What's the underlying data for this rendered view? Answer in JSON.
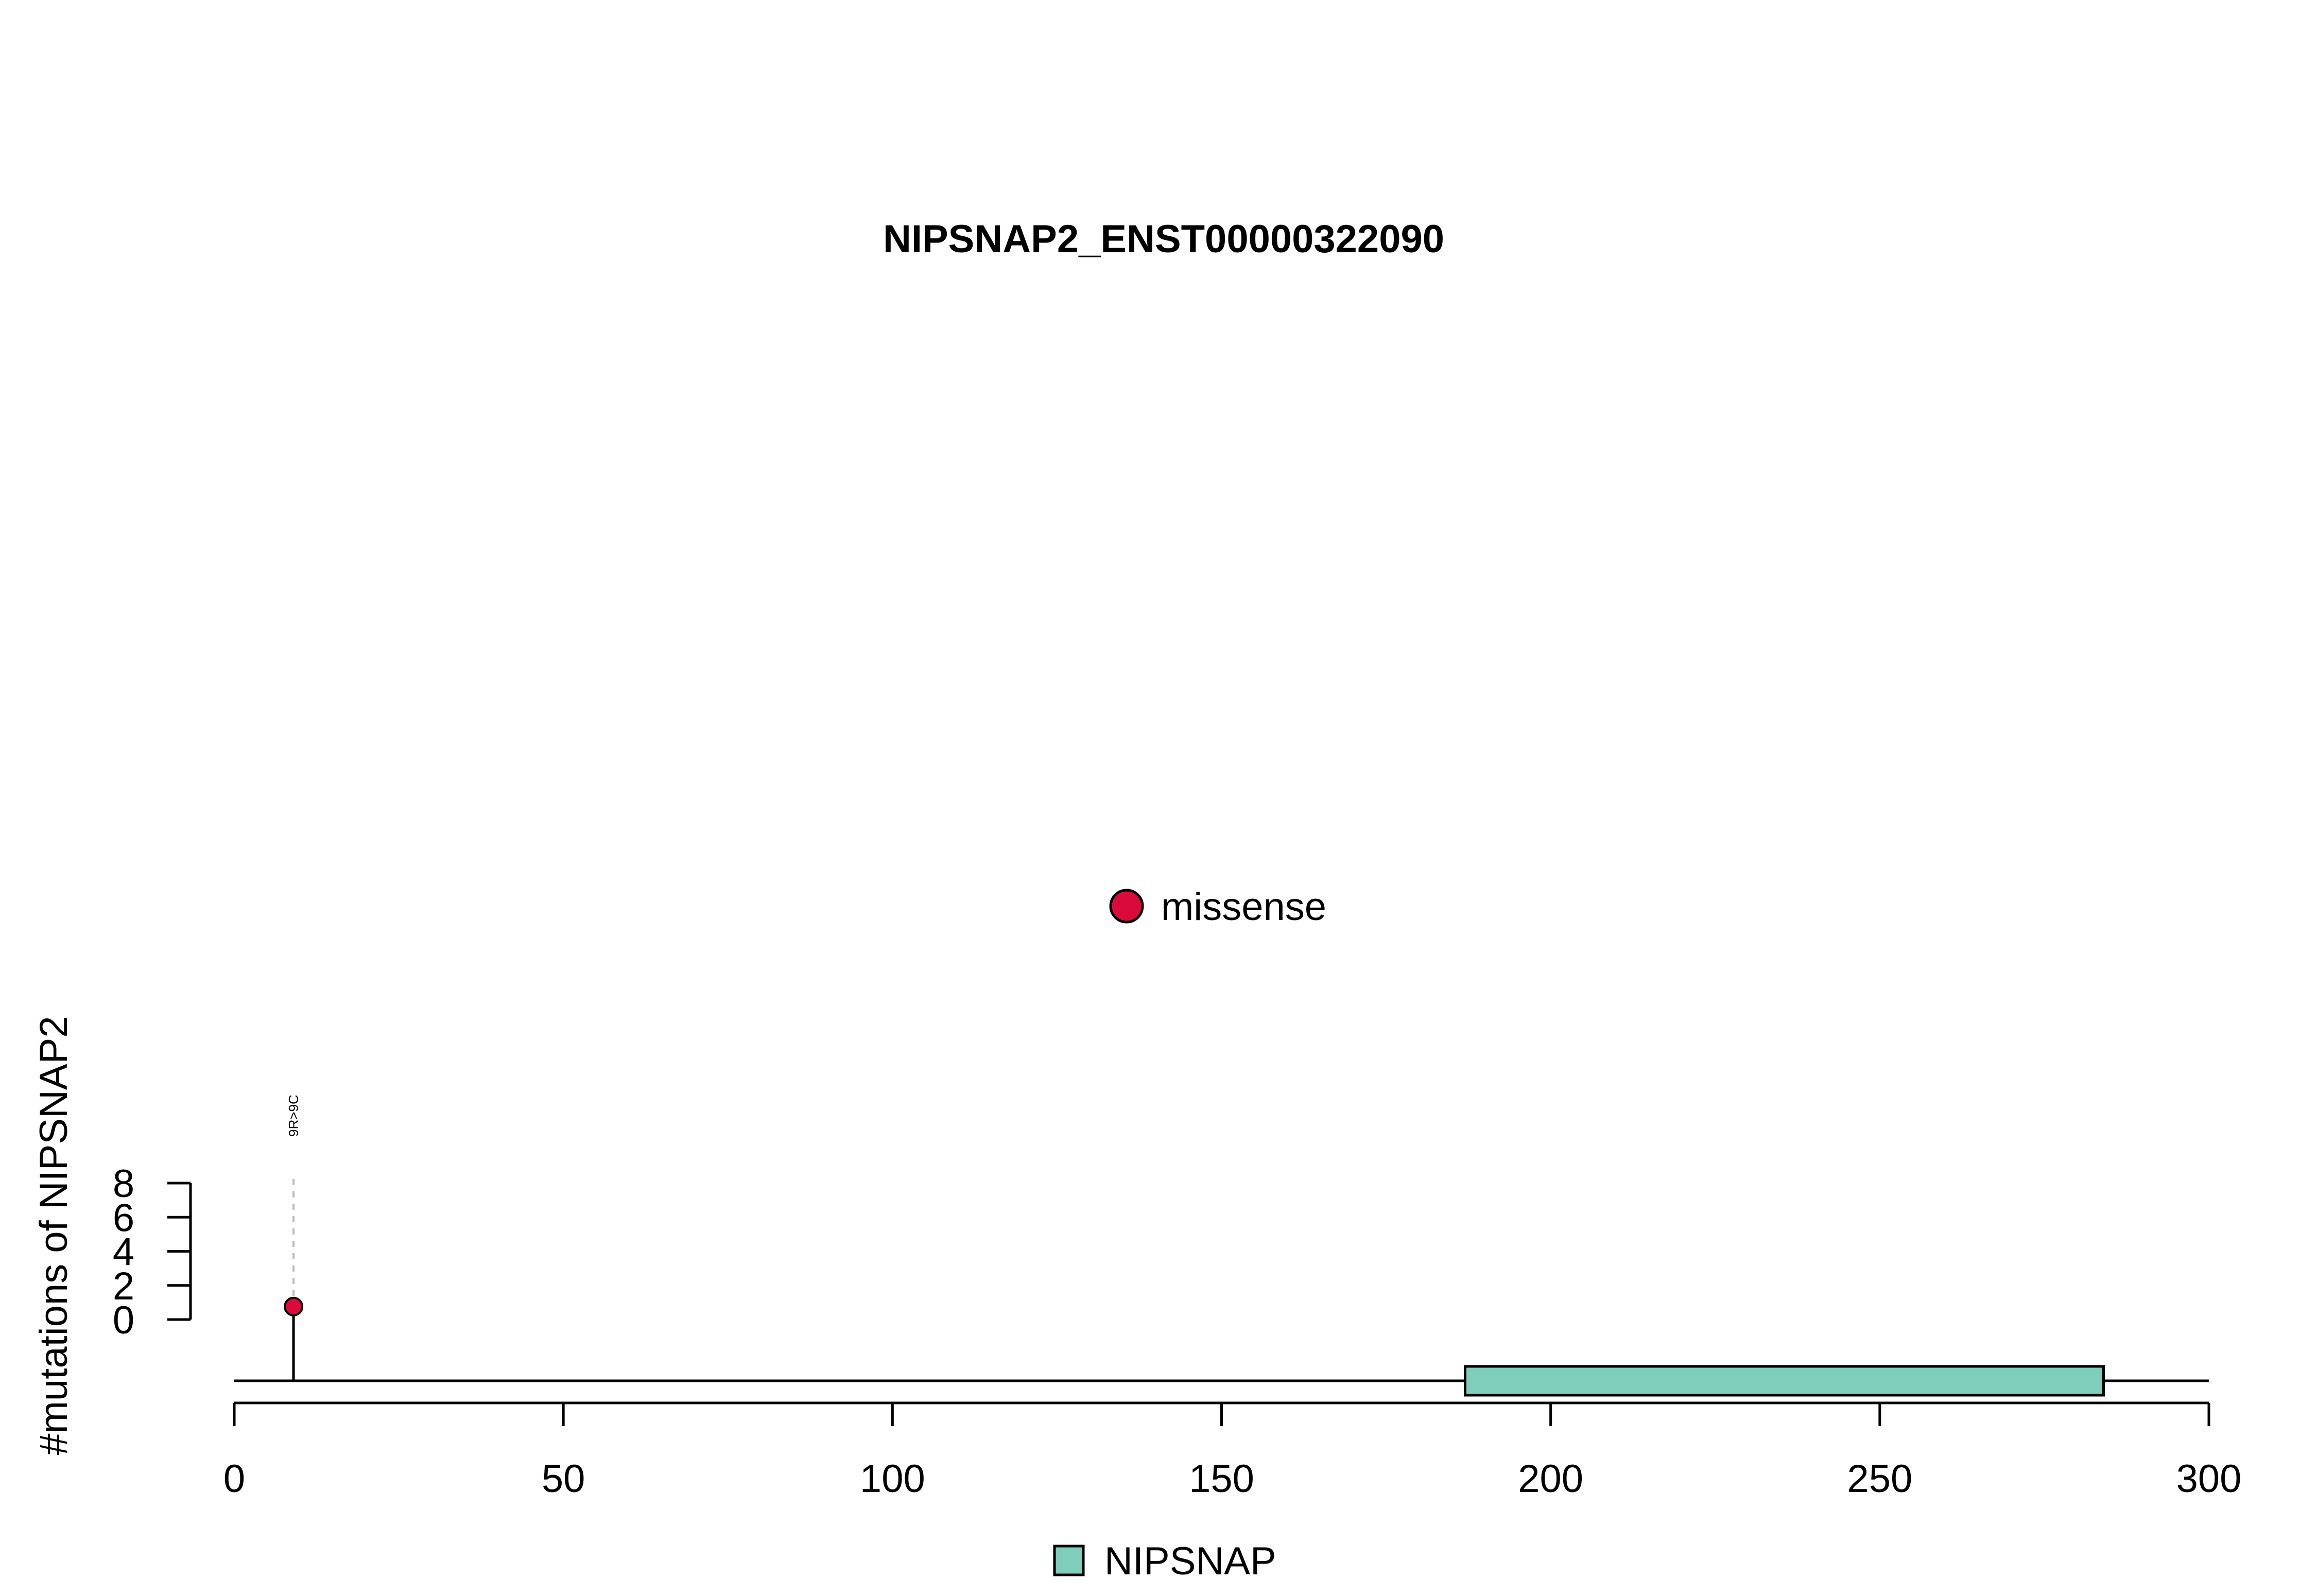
{
  "chart_data": {
    "type": "lollipop",
    "title": "NIPSNAP2_ENST00000322090",
    "xlabel": "",
    "ylabel": "#mutations of NIPSNAP2",
    "xlim": [
      0,
      300
    ],
    "ylim": [
      0,
      8
    ],
    "x_ticks": [
      "0",
      "50",
      "100",
      "150",
      "200",
      "250",
      "300"
    ],
    "y_ticks": [
      "0",
      "2",
      "4",
      "6",
      "8"
    ],
    "protein_length": 300,
    "mutations": [
      {
        "position": 9,
        "count": 1,
        "label": "9R>9C",
        "type": "missense"
      }
    ],
    "domains": [
      {
        "name": "NIPSNAP",
        "start": 187,
        "end": 284
      }
    ],
    "mutation_legend": [
      {
        "label": "missense",
        "color": "#dc0a3c"
      }
    ],
    "domain_legend": [
      {
        "label": "NIPSNAP",
        "color": "#7fcdbb"
      }
    ]
  }
}
